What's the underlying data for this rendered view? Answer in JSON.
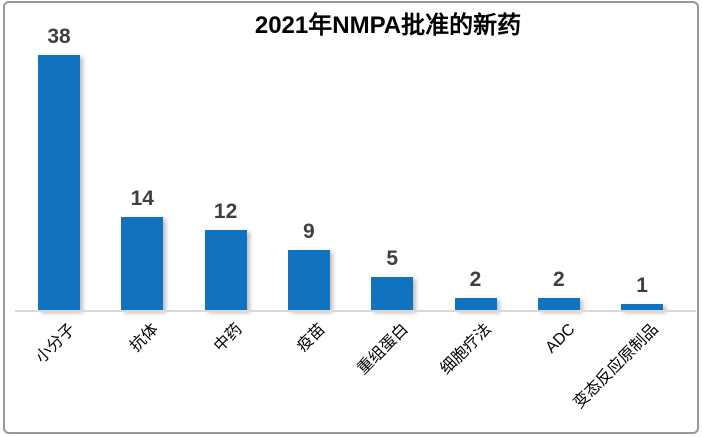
{
  "chart_data": {
    "type": "bar",
    "title": "2021年NMPA批准的新药",
    "categories": [
      "小分子",
      "抗体",
      "中药",
      "疫苗",
      "重组蛋白",
      "细胞疗法",
      "ADC",
      "变态反应原制品"
    ],
    "values": [
      38,
      14,
      12,
      9,
      5,
      2,
      2,
      1
    ],
    "xlabel": "",
    "ylabel": "",
    "ylim": [
      0,
      38
    ],
    "grid": false,
    "legend": false,
    "data_labels_shown": true,
    "category_label_rotation_deg": 45,
    "colors": {
      "bar": "#1173BD",
      "value_label": "#404040",
      "category_label": "#000000",
      "title": "#000000",
      "axis_line": "#D9D9D9",
      "chart_border": "#979797",
      "background": "#FFFFFF"
    }
  }
}
